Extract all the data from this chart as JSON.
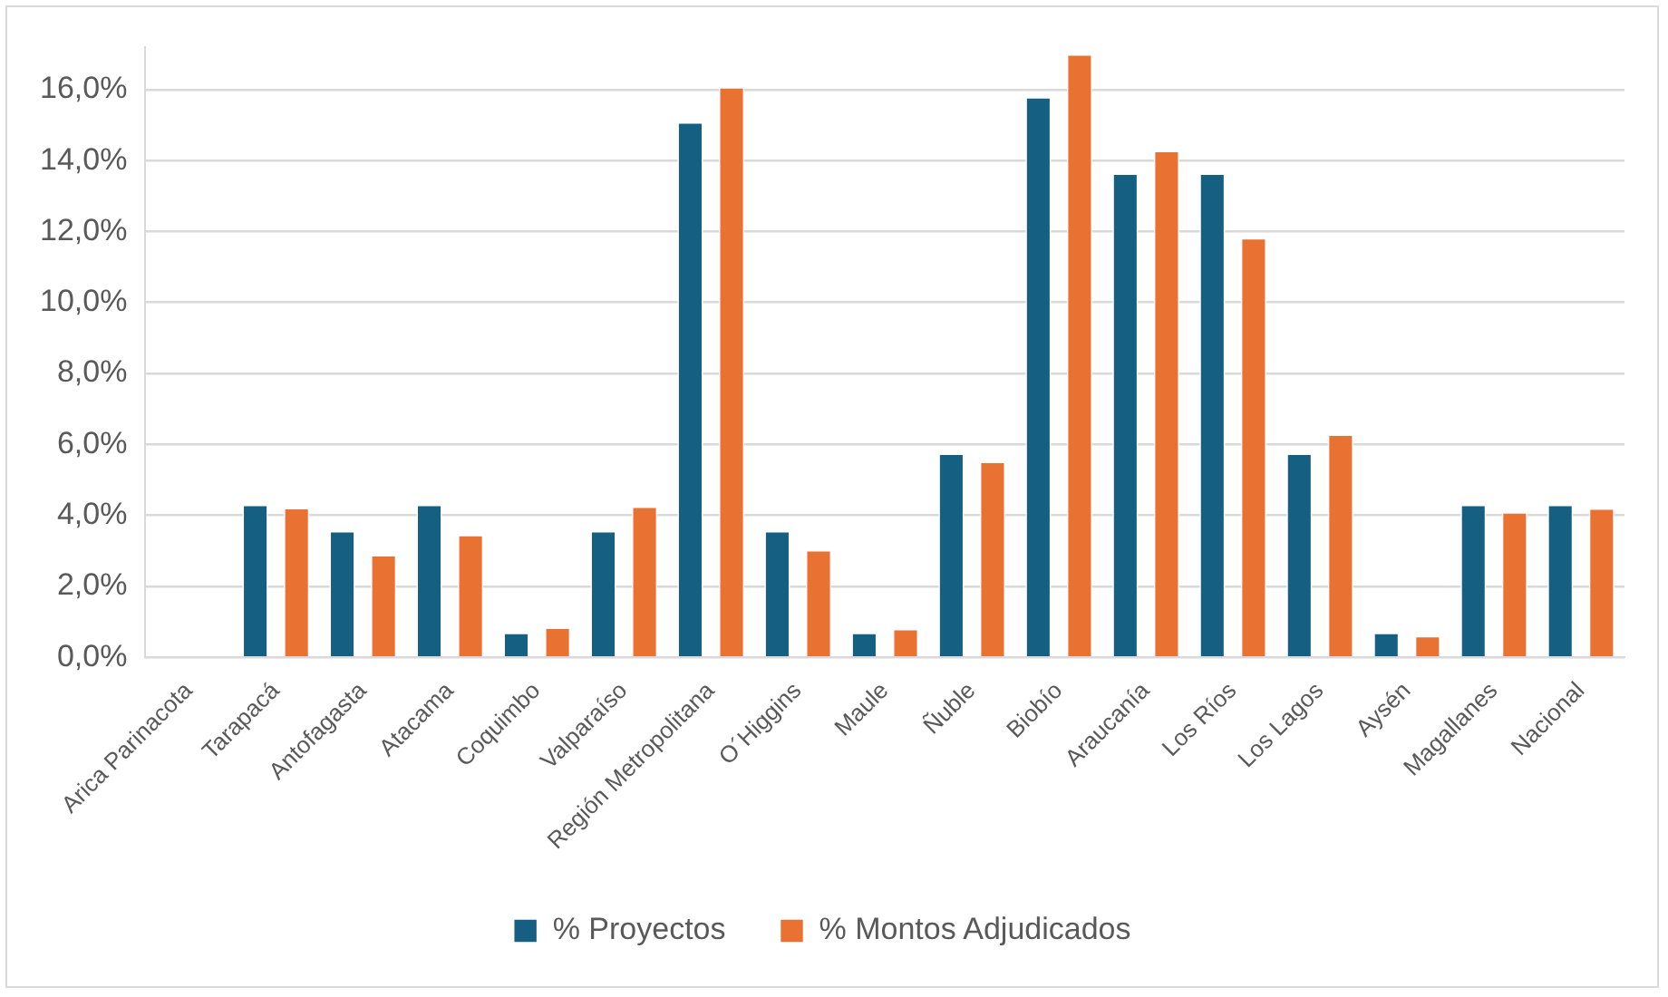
{
  "chart_data": {
    "type": "bar",
    "categories": [
      "Arica Parinacota",
      "Tarapacá",
      "Antofagasta",
      "Atacama",
      "Coquimbo",
      "Valparaíso",
      "Región Metropolitana",
      "O´Higgins",
      "Maule",
      "Ñuble",
      "Biobío",
      "Araucanía",
      "Los Ríos",
      "Los Lagos",
      "Aysén",
      "Magallanes",
      "Nacional"
    ],
    "series": [
      {
        "name": "% Proyectos",
        "color": "#156082",
        "values": [
          0,
          4.3,
          3.56,
          4.3,
          0.69,
          3.56,
          15.08,
          3.56,
          0.69,
          5.74,
          15.79,
          13.64,
          13.64,
          5.74,
          0.69,
          4.3,
          4.3
        ]
      },
      {
        "name": "% Montos Adjudicados",
        "color": "#e97132",
        "values": [
          0,
          4.21,
          2.88,
          3.45,
          0.84,
          4.25,
          16.07,
          3.02,
          0.8,
          5.51,
          17.0,
          14.28,
          11.82,
          6.28,
          0.6,
          4.09,
          4.2
        ]
      }
    ],
    "ylim": [
      0,
      17.2
    ],
    "yticks": [
      {
        "value": 0,
        "label": "0,0%"
      },
      {
        "value": 2,
        "label": "2,0%"
      },
      {
        "value": 4,
        "label": "4,0%"
      },
      {
        "value": 6,
        "label": "6,0%"
      },
      {
        "value": 8,
        "label": "8,0%"
      },
      {
        "value": 10,
        "label": "10,0%"
      },
      {
        "value": 12,
        "label": "12,0%"
      },
      {
        "value": 14,
        "label": "14,0%"
      },
      {
        "value": 16,
        "label": "16,0%"
      }
    ],
    "grid": "y",
    "legend": "bottom"
  }
}
